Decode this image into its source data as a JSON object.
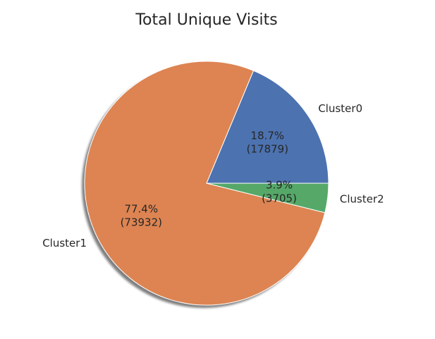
{
  "chart_data": {
    "type": "pie",
    "title": "Total Unique Visits",
    "categories": [
      "Cluster0",
      "Cluster1",
      "Cluster2"
    ],
    "values": [
      17879,
      73932,
      3705
    ],
    "value_labels": [
      [
        "18.7%",
        "(17879)"
      ],
      [
        "77.4%",
        "(73932)"
      ],
      [
        "3.9%",
        "(3705)"
      ]
    ],
    "colors": [
      "#4c72b0",
      "#dd8452",
      "#55a868"
    ]
  }
}
